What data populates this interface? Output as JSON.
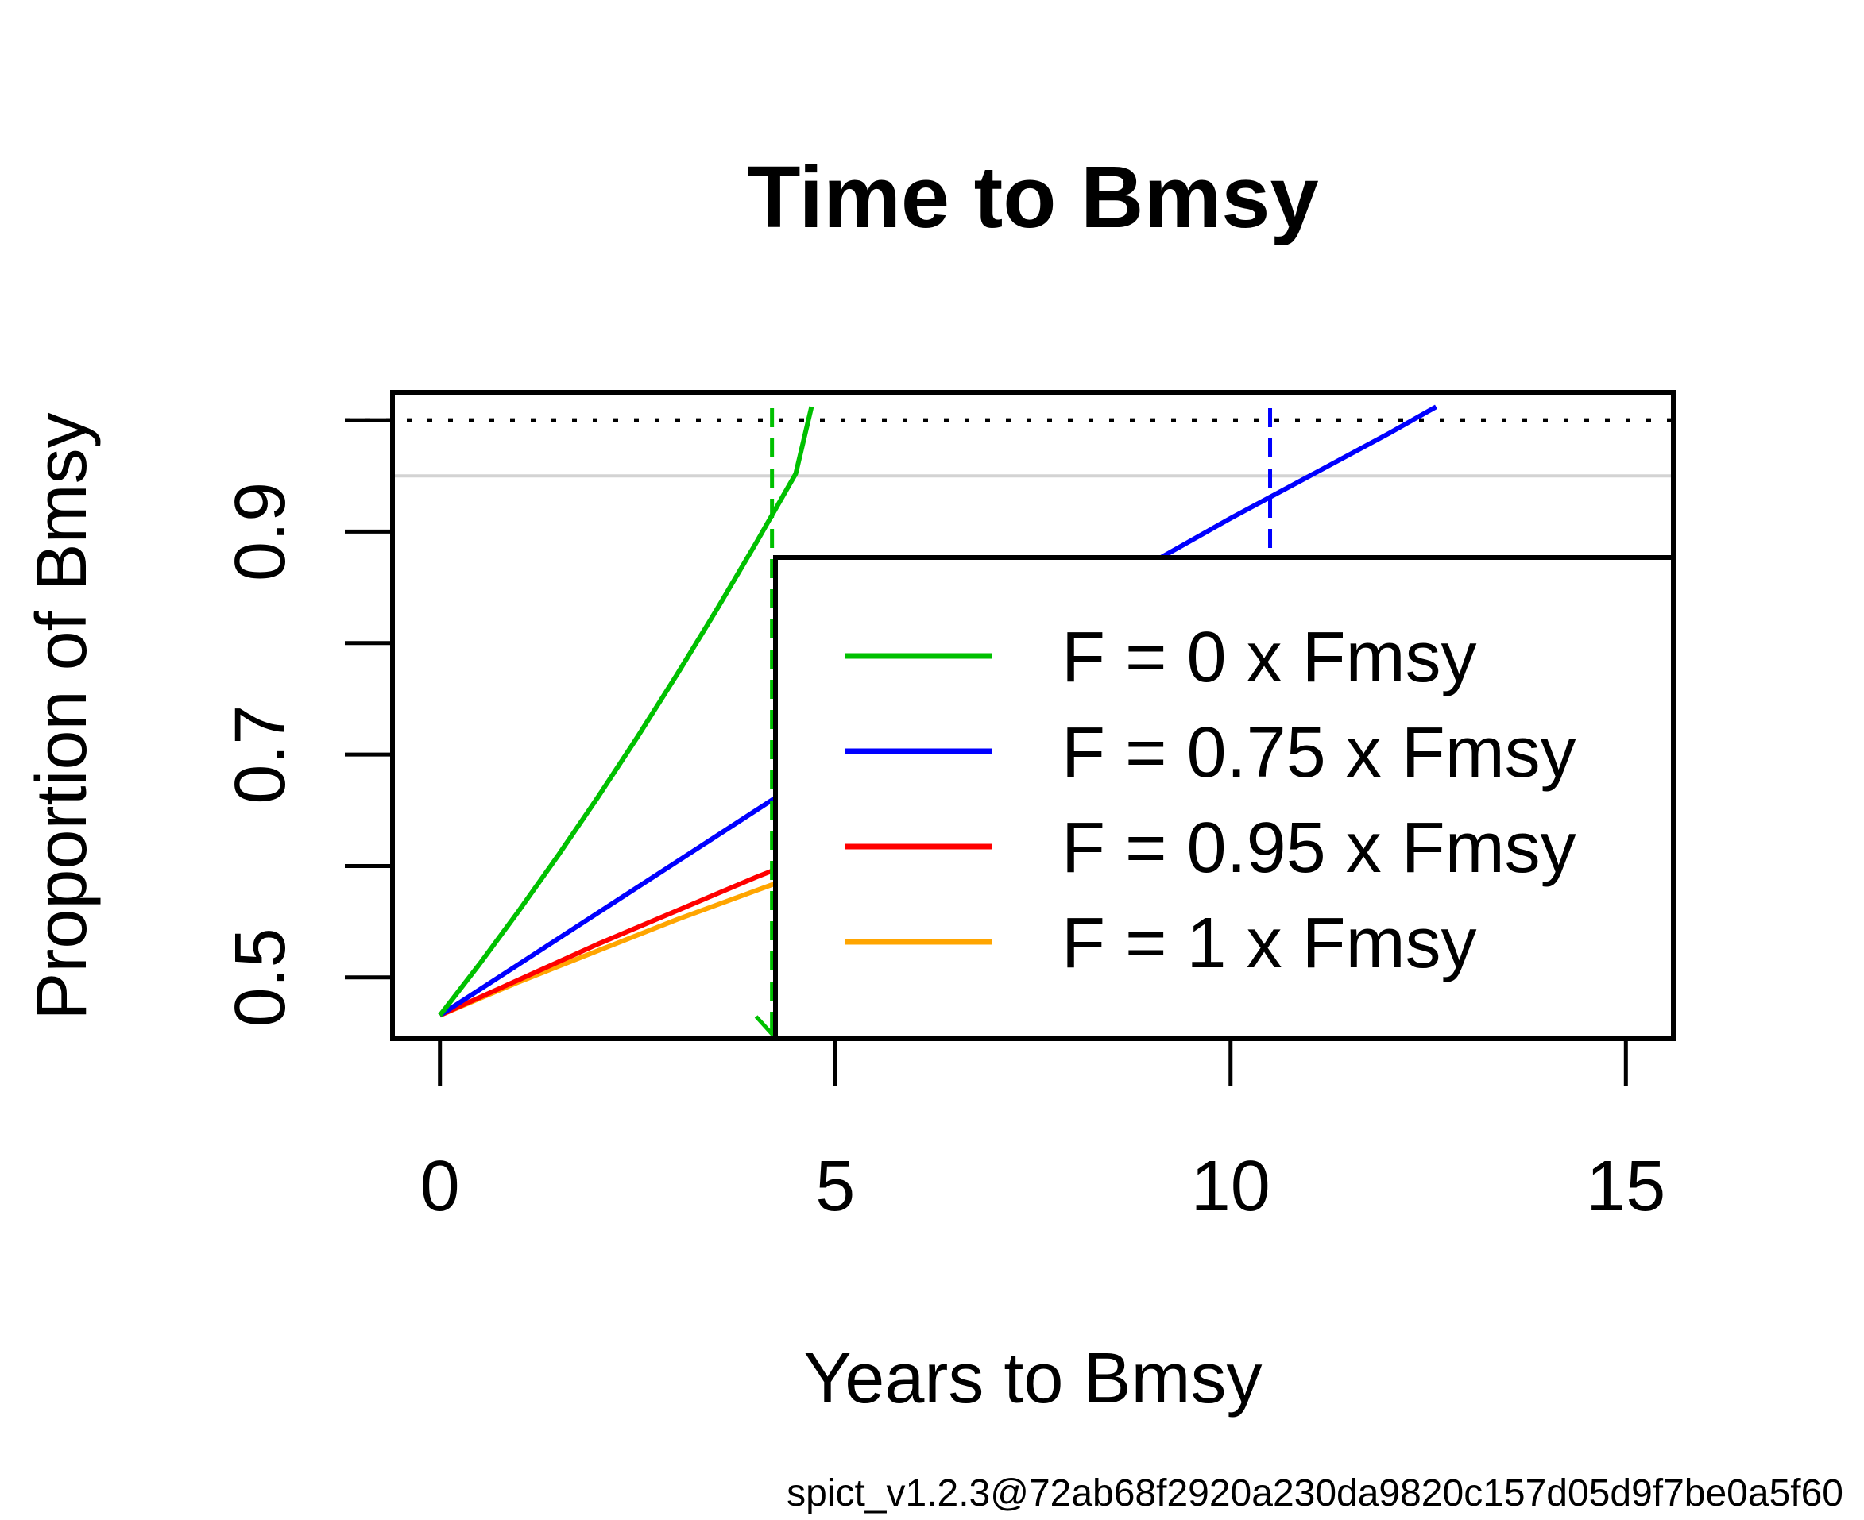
{
  "chart_data": {
    "type": "line",
    "title": "Time to Bmsy",
    "xlabel": "Years to Bmsy",
    "ylabel": "Proportion of Bmsy",
    "xlim": [
      -0.6,
      15.6
    ],
    "ylim": [
      0.445,
      1.025
    ],
    "x_ticks": [
      0,
      5,
      10,
      15
    ],
    "x_tick_labels": [
      "0",
      "5",
      "10",
      "15"
    ],
    "y_ticks": [
      0.5,
      0.6,
      0.7,
      0.8,
      0.9,
      1.0
    ],
    "y_tick_labels": [
      "0.5",
      "",
      "0.7",
      "",
      "0.9",
      ""
    ],
    "reference_lines": [
      {
        "name": "bmsy",
        "y": 1.0,
        "style": "dotted",
        "color": "#000000"
      },
      {
        "name": "target",
        "y": 0.95,
        "style": "solid",
        "color": "#d3d3d3"
      }
    ],
    "series": [
      {
        "name": "F = 0 x Fmsy",
        "color": "#00c000",
        "x": [
          0,
          0.5,
          1,
          1.5,
          2,
          2.5,
          3,
          3.5,
          4,
          4.5,
          4.7
        ],
        "y": [
          0.466,
          0.512,
          0.56,
          0.61,
          0.662,
          0.716,
          0.772,
          0.83,
          0.89,
          0.952,
          1.012
        ]
      },
      {
        "name": "F = 0.75 x Fmsy",
        "color": "#0000ff",
        "x": [
          0,
          1,
          2,
          3,
          4,
          5,
          6,
          7,
          8,
          9,
          10,
          11,
          12,
          12.6
        ],
        "y": [
          0.466,
          0.512,
          0.558,
          0.604,
          0.65,
          0.696,
          0.742,
          0.786,
          0.83,
          0.872,
          0.912,
          0.95,
          0.988,
          1.012
        ]
      },
      {
        "name": "F = 0.95 x Fmsy",
        "color": "#ff0000",
        "x": [
          0,
          1,
          2,
          3,
          4,
          5,
          6,
          7,
          8,
          9,
          10,
          11,
          12,
          13,
          14,
          15,
          15.6
        ],
        "y": [
          0.466,
          0.498,
          0.53,
          0.56,
          0.59,
          0.618,
          0.646,
          0.672,
          0.698,
          0.722,
          0.746,
          0.768,
          0.79,
          0.81,
          0.83,
          0.85,
          0.86
        ]
      },
      {
        "name": "F = 1 x Fmsy",
        "color": "#ffa500",
        "x": [
          0,
          1,
          2,
          3,
          4,
          5,
          6,
          7,
          8,
          9,
          10,
          11,
          12,
          13,
          14,
          15,
          15.6
        ],
        "y": [
          0.466,
          0.496,
          0.524,
          0.552,
          0.578,
          0.604,
          0.628,
          0.65,
          0.672,
          0.694,
          0.714,
          0.734,
          0.754,
          0.772,
          0.79,
          0.806,
          0.816
        ]
      }
    ],
    "vertical_markers": [
      {
        "series": "F = 0 x Fmsy",
        "x": 4.2,
        "color": "#00c000"
      },
      {
        "series": "F = 0.75 x Fmsy",
        "x": 10.5,
        "color": "#0000ff"
      }
    ],
    "legend": {
      "placement": "bottom-right"
    }
  },
  "footer": {
    "text": "spict_v1.2.3@72ab68f2920a230da9820c157d05d9f7be0a5f60"
  }
}
